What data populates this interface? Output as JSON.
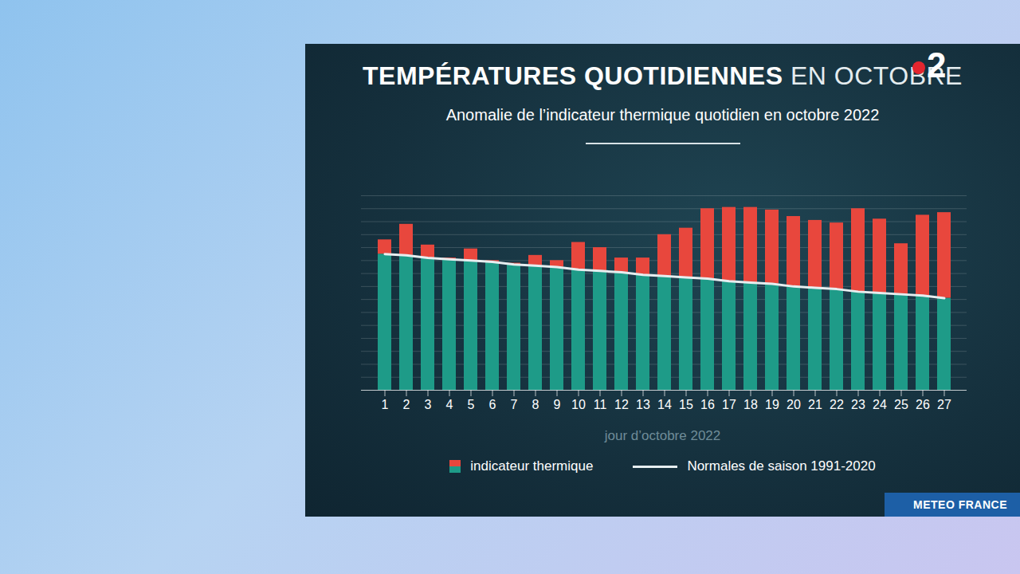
{
  "chart_data": {
    "type": "bar",
    "title": "TEMPÉRATURES QUOTIDIENNES EN OCTOBRE",
    "subtitle": "Anomalie de l’indicateur thermique quotidien en octobre 2022",
    "x_label": "jour d’octobre 2022",
    "logo": "2",
    "source": "METEO FRANCE",
    "categories": [
      "1",
      "2",
      "3",
      "4",
      "5",
      "6",
      "7",
      "8",
      "9",
      "10",
      "11",
      "12",
      "13",
      "14",
      "15",
      "16",
      "17",
      "18",
      "19",
      "20",
      "21",
      "22",
      "23",
      "24",
      "25",
      "26",
      "27"
    ],
    "series": [
      {
        "name": "indicateur thermique",
        "type": "bar",
        "colors": [
          "#e8473d",
          "#1e9b88"
        ],
        "values": [
          16.6,
          17.8,
          16.2,
          15.2,
          15.9,
          15.0,
          14.8,
          15.4,
          15.0,
          16.4,
          16.0,
          15.2,
          15.2,
          17.0,
          17.5,
          19.0,
          19.1,
          19.1,
          18.9,
          18.4,
          18.1,
          17.9,
          19.0,
          18.2,
          16.3,
          18.5,
          18.7
        ]
      },
      {
        "name": "Normales de saison 1991-2020",
        "type": "line",
        "color": "#e6eef0",
        "values": [
          15.5,
          15.4,
          15.2,
          15.1,
          15.0,
          14.9,
          14.7,
          14.6,
          14.5,
          14.3,
          14.2,
          14.1,
          13.9,
          13.8,
          13.7,
          13.6,
          13.4,
          13.3,
          13.2,
          13.0,
          12.9,
          12.8,
          12.6,
          12.5,
          12.4,
          12.3,
          12.1
        ]
      }
    ],
    "ylim": [
      5,
      20
    ],
    "yticks": [
      5,
      6,
      7,
      8,
      9,
      10,
      11,
      12,
      13,
      14,
      15,
      16,
      17,
      18,
      19,
      20
    ],
    "grid": true,
    "tick_labels": "x",
    "legend": "bottom"
  }
}
